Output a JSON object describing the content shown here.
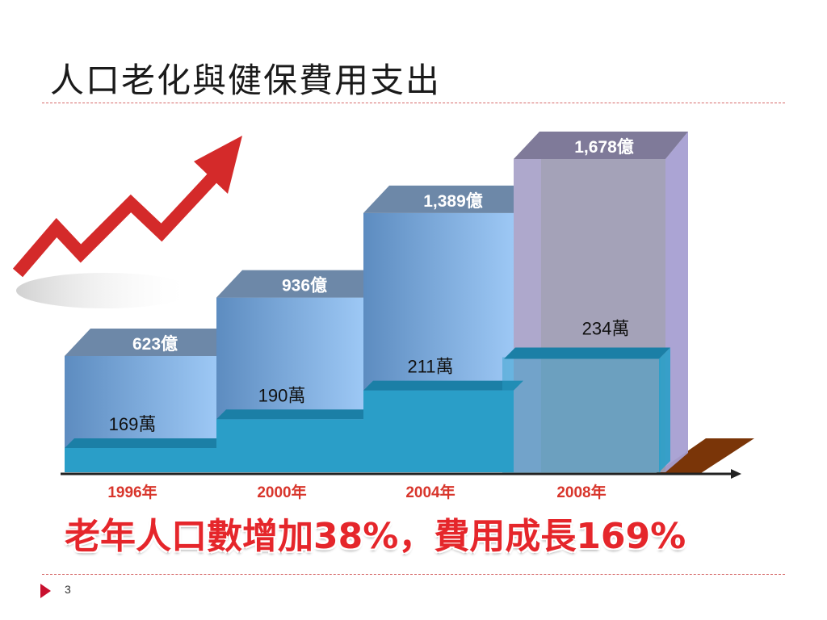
{
  "slide": {
    "title": "人口老化與健保費用支出",
    "headline": "老年人口數增加38%，費用成長169%",
    "page_number": "3"
  },
  "colors": {
    "bar_front_light": "#9dc8f5",
    "bar_front_dark": "#5d8cc0",
    "bar_top": "#6d88a8",
    "bar_last_front": "#a59fc6",
    "bar_last_top": "#7f7a99",
    "base_front": "#2a9ec8",
    "base_top": "#1b7fa6",
    "axis_year_text": "#d8352b",
    "arrow_red": "#d42a2a",
    "ground_brown": "#7a3508"
  },
  "chart_data": {
    "type": "bar",
    "categories": [
      "1996年",
      "2000年",
      "2004年",
      "2008年"
    ],
    "series": [
      {
        "values": [
          623,
          936,
          1389,
          1678
        ],
        "labels": [
          "623億",
          "936億",
          "1,389億",
          "1,678億"
        ]
      },
      {
        "values": [
          169,
          190,
          211,
          234
        ],
        "labels": [
          "169萬",
          "190萬",
          "211萬",
          "234萬"
        ]
      }
    ],
    "title": "",
    "xlabel": "",
    "ylabel": "",
    "grid": false,
    "legend": "none"
  }
}
